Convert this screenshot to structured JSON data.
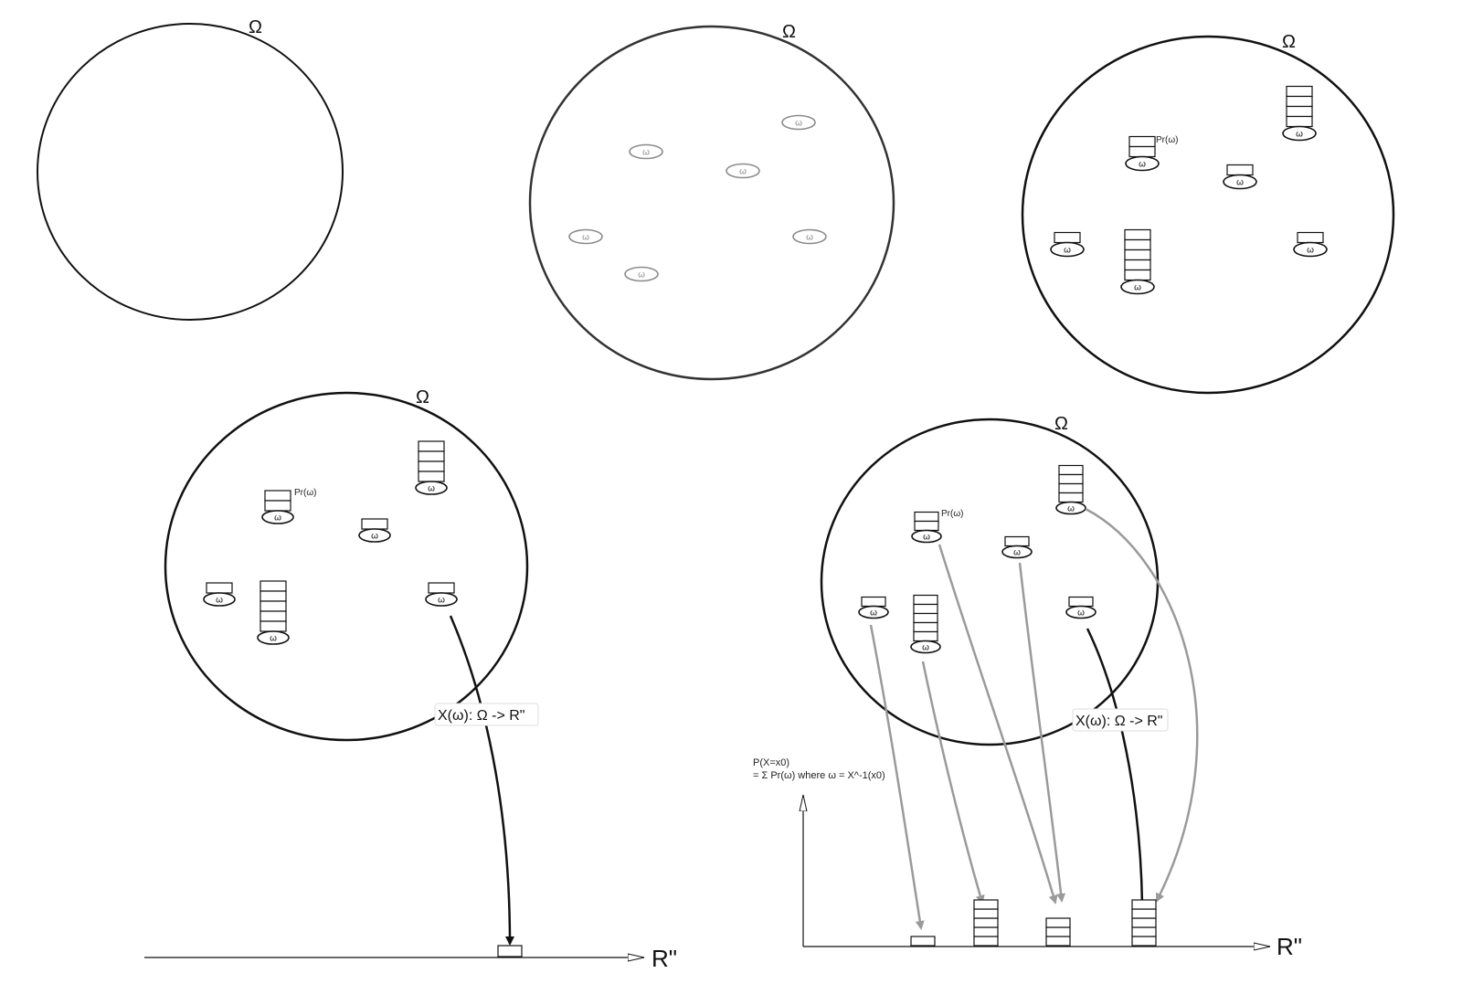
{
  "omega_symbol": "Ω",
  "outcome_symbol": "ω",
  "probability_label": "Pr(ω)",
  "mapping_label": "X(ω): Ω -> R\"",
  "axis_label": "R\"",
  "probability_formula": [
    "P(X=x0)",
    "= Σ Pr(ω) where ω = X^-1(x0)"
  ],
  "colors": {
    "ink": "#111111",
    "faded_ink": "#8a8a8a",
    "arrow_gray": "#9a9a9a"
  },
  "panels": [
    {
      "id": "empty-sample-space",
      "outcomes": 0,
      "weights": []
    },
    {
      "id": "outcomes-only",
      "outcomes": 6,
      "weights": [
        0,
        0,
        0,
        0,
        0,
        0
      ]
    },
    {
      "id": "weighted-outcomes",
      "outcomes": 6,
      "weights": [
        2,
        4,
        1,
        1,
        5,
        1
      ]
    },
    {
      "id": "single-mapping",
      "outcomes": 6,
      "weights": [
        2,
        4,
        1,
        1,
        5,
        1
      ],
      "mapped_bin_weights": [
        1
      ]
    },
    {
      "id": "distribution",
      "outcomes": 6,
      "weights": [
        2,
        4,
        1,
        1,
        5,
        1
      ],
      "mapped_bin_weights": [
        1,
        5,
        3,
        5
      ]
    }
  ]
}
